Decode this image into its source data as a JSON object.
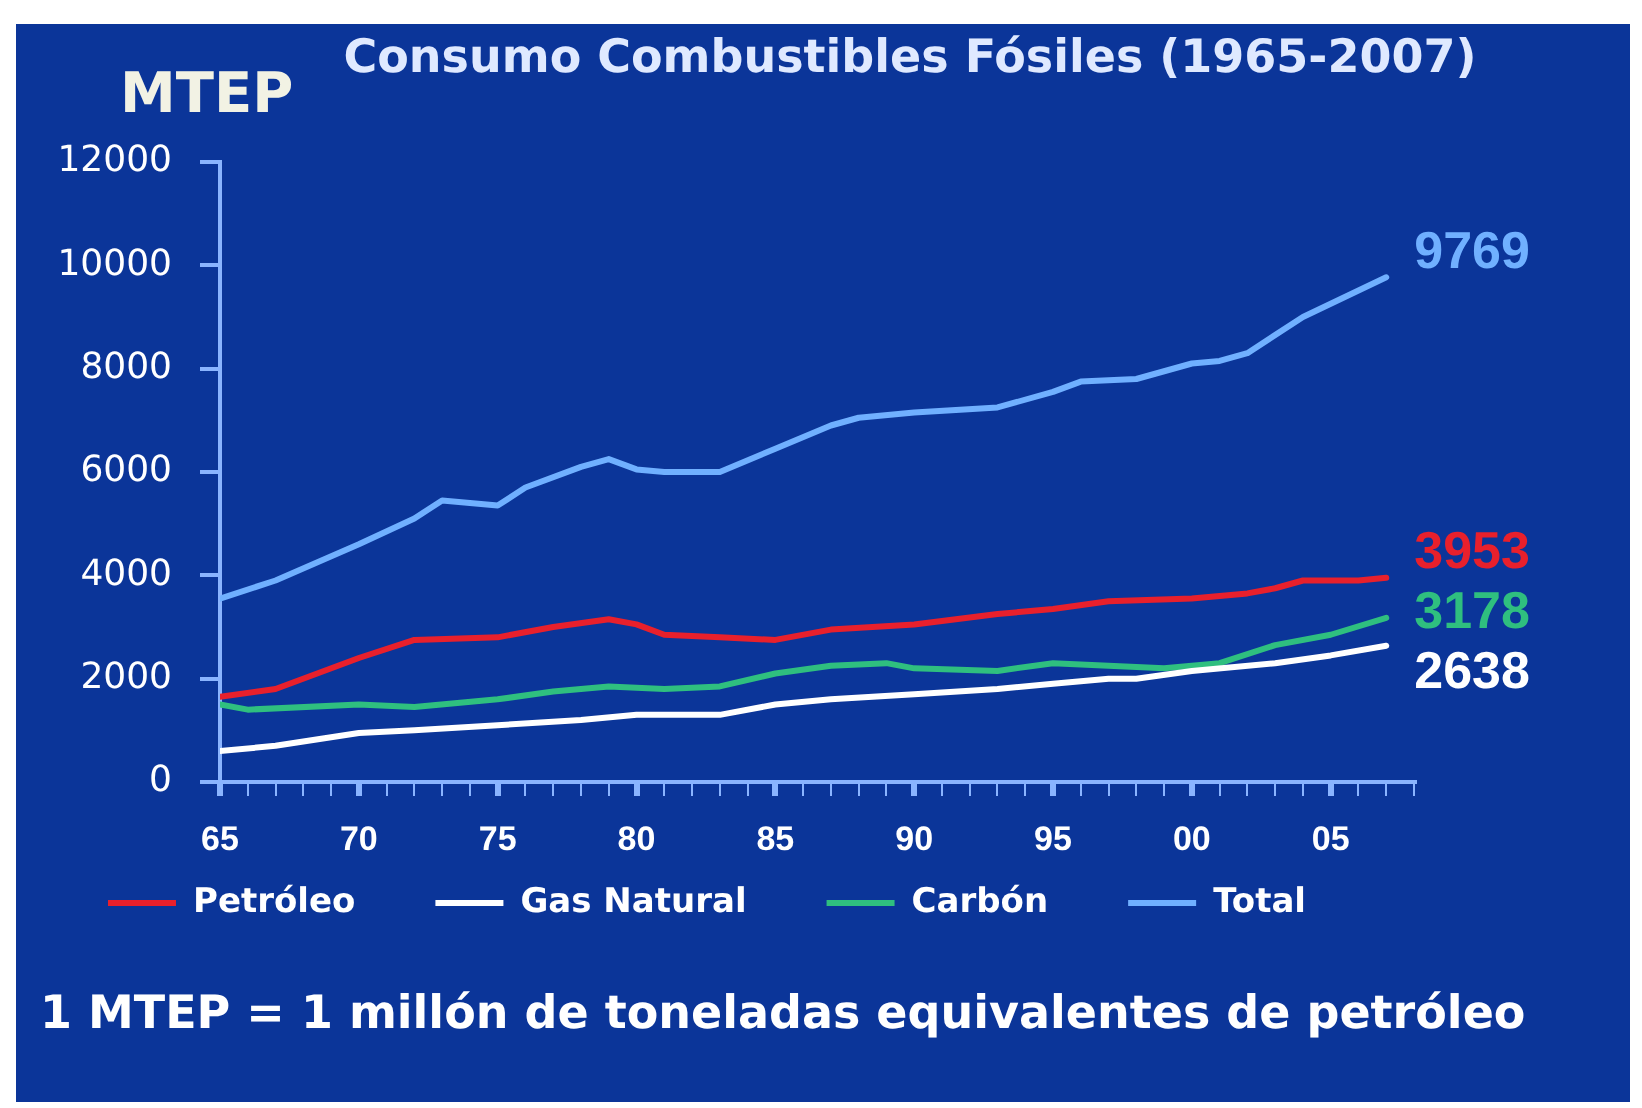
{
  "chart_data": {
    "type": "line",
    "title": "Consumo Combustibles Fósiles (1965-2007)",
    "ylabel": "MTEP",
    "annotations": [
      "1 MTEP = 1 millón de toneladas equivalentes de petróleo"
    ],
    "series": [
      {
        "name": "Petróleo",
        "color": "#e8202c",
        "x": [
          1965,
          1967,
          1970,
          1972,
          1975,
          1977,
          1979,
          1980,
          1981,
          1983,
          1985,
          1987,
          1990,
          1993,
          1995,
          1997,
          2000,
          2002,
          2003,
          2004,
          2006,
          2007
        ],
        "values": [
          1650,
          1800,
          2400,
          2750,
          2800,
          3000,
          3150,
          3050,
          2850,
          2800,
          2750,
          2950,
          3050,
          3250,
          3350,
          3500,
          3550,
          3650,
          3750,
          3900,
          3900,
          3953
        ],
        "value_labels": [
          null,
          null,
          null,
          null,
          null,
          null,
          null,
          null,
          null,
          null,
          null,
          null,
          null,
          null,
          null,
          null,
          null,
          null,
          null,
          null,
          null,
          "3953"
        ]
      },
      {
        "name": "Gas Natural",
        "color": "#ffffff",
        "x": [
          1965,
          1967,
          1970,
          1972,
          1975,
          1978,
          1980,
          1983,
          1985,
          1987,
          1990,
          1993,
          1995,
          1997,
          1998,
          2000,
          2003,
          2005,
          2007
        ],
        "values": [
          600,
          700,
          950,
          1000,
          1100,
          1200,
          1300,
          1300,
          1500,
          1600,
          1700,
          1800,
          1900,
          2000,
          2000,
          2150,
          2300,
          2450,
          2638
        ],
        "value_labels": [
          null,
          null,
          null,
          null,
          null,
          null,
          null,
          null,
          null,
          null,
          null,
          null,
          null,
          null,
          null,
          null,
          null,
          null,
          "2638"
        ]
      },
      {
        "name": "Carbón",
        "color": "#2fbf7f",
        "x": [
          1965,
          1966,
          1970,
          1972,
          1975,
          1977,
          1979,
          1981,
          1983,
          1985,
          1987,
          1989,
          1990,
          1993,
          1995,
          1997,
          1999,
          2001,
          2003,
          2005,
          2007
        ],
        "values": [
          1500,
          1400,
          1500,
          1450,
          1600,
          1750,
          1850,
          1800,
          1850,
          2100,
          2250,
          2300,
          2200,
          2150,
          2300,
          2250,
          2200,
          2300,
          2650,
          2850,
          3178
        ],
        "value_labels": [
          null,
          null,
          null,
          null,
          null,
          null,
          null,
          null,
          null,
          null,
          null,
          null,
          null,
          null,
          null,
          null,
          null,
          null,
          null,
          null,
          "3178"
        ]
      },
      {
        "name": "Total",
        "color": "#70b0ff",
        "x": [
          1965,
          1967,
          1970,
          1972,
          1973,
          1975,
          1976,
          1978,
          1979,
          1980,
          1981,
          1983,
          1985,
          1987,
          1988,
          1990,
          1993,
          1995,
          1996,
          1998,
          2000,
          2001,
          2002,
          2004,
          2007
        ],
        "values": [
          3550,
          3900,
          4600,
          5100,
          5450,
          5350,
          5700,
          6100,
          6250,
          6050,
          6000,
          6000,
          6450,
          6900,
          7050,
          7150,
          7250,
          7550,
          7750,
          7800,
          8100,
          8150,
          8300,
          9000,
          9769
        ],
        "value_labels": [
          null,
          null,
          null,
          null,
          null,
          null,
          null,
          null,
          null,
          null,
          null,
          null,
          null,
          null,
          null,
          null,
          null,
          null,
          null,
          null,
          null,
          null,
          null,
          null,
          "9769"
        ]
      }
    ],
    "xlim": [
      1965,
      2008
    ],
    "xticks": [
      {
        "value": 1965,
        "label": "65"
      },
      {
        "value": 1966,
        "label": null
      },
      {
        "value": 1967,
        "label": null
      },
      {
        "value": 1968,
        "label": null
      },
      {
        "value": 1969,
        "label": null
      },
      {
        "value": 1970,
        "label": "70"
      },
      {
        "value": 1971,
        "label": null
      },
      {
        "value": 1972,
        "label": null
      },
      {
        "value": 1973,
        "label": null
      },
      {
        "value": 1974,
        "label": null
      },
      {
        "value": 1975,
        "label": "75"
      },
      {
        "value": 1976,
        "label": null
      },
      {
        "value": 1977,
        "label": null
      },
      {
        "value": 1978,
        "label": null
      },
      {
        "value": 1979,
        "label": null
      },
      {
        "value": 1980,
        "label": "80"
      },
      {
        "value": 1981,
        "label": null
      },
      {
        "value": 1982,
        "label": null
      },
      {
        "value": 1983,
        "label": null
      },
      {
        "value": 1984,
        "label": null
      },
      {
        "value": 1985,
        "label": "85"
      },
      {
        "value": 1986,
        "label": null
      },
      {
        "value": 1987,
        "label": null
      },
      {
        "value": 1988,
        "label": null
      },
      {
        "value": 1989,
        "label": null
      },
      {
        "value": 1990,
        "label": "90"
      },
      {
        "value": 1991,
        "label": null
      },
      {
        "value": 1992,
        "label": null
      },
      {
        "value": 1993,
        "label": null
      },
      {
        "value": 1994,
        "label": null
      },
      {
        "value": 1995,
        "label": "95"
      },
      {
        "value": 1996,
        "label": null
      },
      {
        "value": 1997,
        "label": null
      },
      {
        "value": 1998,
        "label": null
      },
      {
        "value": 1999,
        "label": null
      },
      {
        "value": 2000,
        "label": "00"
      },
      {
        "value": 2001,
        "label": null
      },
      {
        "value": 2002,
        "label": null
      },
      {
        "value": 2003,
        "label": null
      },
      {
        "value": 2004,
        "label": null
      },
      {
        "value": 2005,
        "label": "05"
      },
      {
        "value": 2006,
        "label": null
      },
      {
        "value": 2007,
        "label": null
      },
      {
        "value": 2008,
        "label": null
      }
    ],
    "ylim": [
      0,
      12000
    ],
    "yticks": [
      0,
      2000,
      4000,
      6000,
      8000,
      10000,
      12000
    ],
    "legend": "bottom",
    "marker": "none",
    "line_style": "solid"
  }
}
